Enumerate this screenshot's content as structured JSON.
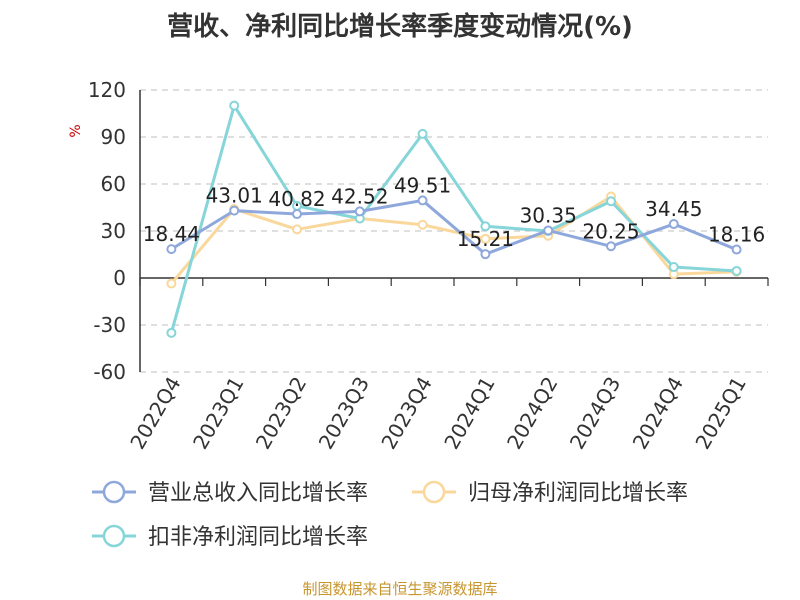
{
  "chart_data": {
    "type": "line",
    "title": "营收、净利同比增长率季度变动情况(%)",
    "ylabel": "%",
    "xlabel": "",
    "categories": [
      "2022Q4",
      "2023Q1",
      "2023Q2",
      "2023Q3",
      "2023Q4",
      "2024Q1",
      "2024Q2",
      "2024Q3",
      "2024Q4",
      "2025Q1"
    ],
    "ylim": [
      -60,
      120
    ],
    "yticks": [
      "120",
      "90",
      "60",
      "30",
      "0",
      "-30",
      "-60"
    ],
    "grid": true,
    "legend_position": "bottom",
    "series": [
      {
        "name": "营业总收入同比增长率",
        "color": "#8fa8dc",
        "values": [
          18.44,
          43.01,
          40.82,
          42.52,
          49.51,
          15.21,
          30.35,
          20.25,
          34.45,
          18.16
        ],
        "labels": [
          "18.44",
          "43.01",
          "40.82",
          "42.52",
          "49.51",
          "15.21",
          "30.35",
          "20.25",
          "34.45",
          "18.16"
        ]
      },
      {
        "name": "归母净利润同比增长率",
        "color": "#fad79b",
        "values": [
          -3.5,
          44,
          31,
          38,
          34,
          25,
          27,
          52,
          2.5,
          4
        ]
      },
      {
        "name": "扣非净利润同比增长率",
        "color": "#86d5d8",
        "values": [
          -35,
          110,
          46,
          38,
          92,
          33,
          30,
          49,
          7,
          4.5
        ]
      }
    ]
  },
  "footer": {
    "source": "制图数据来自恒生聚源数据库"
  }
}
